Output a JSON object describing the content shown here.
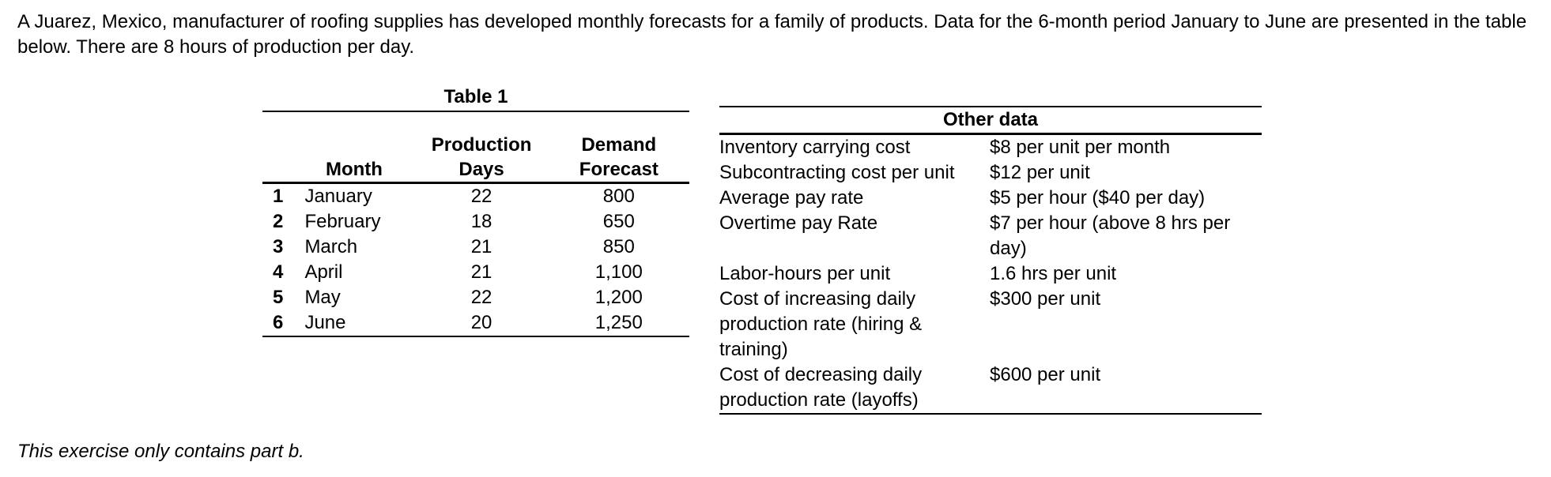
{
  "intro": "A Juarez, Mexico, manufacturer of roofing supplies has developed monthly forecasts for a family of products. Data for the 6-month period January to June are presented in the table below. There are 8 hours of production per day.",
  "table1": {
    "caption": "Table 1",
    "headers": {
      "month": "Month",
      "days_line1": "Production",
      "days_line2": "Days",
      "demand_line1": "Demand",
      "demand_line2": "Forecast"
    },
    "rows": [
      {
        "num": "1",
        "month": "January",
        "days": "22",
        "demand": "800"
      },
      {
        "num": "2",
        "month": "February",
        "days": "18",
        "demand": "650"
      },
      {
        "num": "3",
        "month": "March",
        "days": "21",
        "demand": "850"
      },
      {
        "num": "4",
        "month": "April",
        "days": "21",
        "demand": "1,100"
      },
      {
        "num": "5",
        "month": "May",
        "days": "22",
        "demand": "1,200"
      },
      {
        "num": "6",
        "month": "June",
        "days": "20",
        "demand": "1,250"
      }
    ]
  },
  "other_data": {
    "title": "Other data",
    "rows": [
      {
        "label": "Inventory carrying cost",
        "value": "$8 per unit per month"
      },
      {
        "label": "Subcontracting cost per unit",
        "value": "$12 per unit"
      },
      {
        "label": "Average pay rate",
        "value": "$5 per hour ($40 per day)"
      },
      {
        "label": "Overtime pay Rate",
        "value": "$7 per hour (above 8 hrs per day)"
      },
      {
        "label": "Labor-hours per unit",
        "value": "1.6 hrs per unit"
      },
      {
        "label": "Cost of increasing daily production rate (hiring & training)",
        "value": "$300 per unit"
      },
      {
        "label": "Cost of decreasing daily production rate (layoffs)",
        "value": "$600 per unit"
      }
    ]
  },
  "footnote": "This exercise only contains part b."
}
